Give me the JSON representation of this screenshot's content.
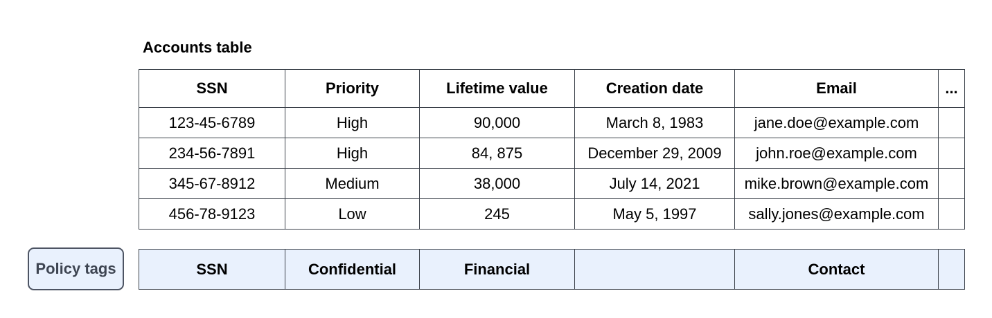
{
  "title": "Accounts table",
  "table": {
    "headers": [
      "SSN",
      "Priority",
      "Lifetime value",
      "Creation date",
      "Email",
      "..."
    ],
    "rows": [
      [
        "123-45-6789",
        "High",
        "90,000",
        "March 8, 1983",
        "jane.doe@example.com",
        ""
      ],
      [
        "234-56-7891",
        "High",
        "84, 875",
        "December 29, 2009",
        "john.roe@example.com",
        ""
      ],
      [
        "345-67-8912",
        "Medium",
        "38,000",
        "July 14, 2021",
        "mike.brown@example.com",
        ""
      ],
      [
        "456-78-9123",
        "Low",
        "245",
        "May 5, 1997",
        "sally.jones@example.com",
        ""
      ]
    ]
  },
  "policy": {
    "button_label": "Policy tags",
    "tags": [
      "SSN",
      "Confidential",
      "Financial",
      "",
      "Contact",
      ""
    ]
  },
  "colors": {
    "table_border": "#3a4049",
    "policy_cell_background": "#e9f1fd",
    "policy_button_background": "#e9f1fd",
    "policy_button_border": "#4d5463",
    "policy_button_text": "#3e4552",
    "text": "#000000",
    "page_background": "#ffffff"
  }
}
